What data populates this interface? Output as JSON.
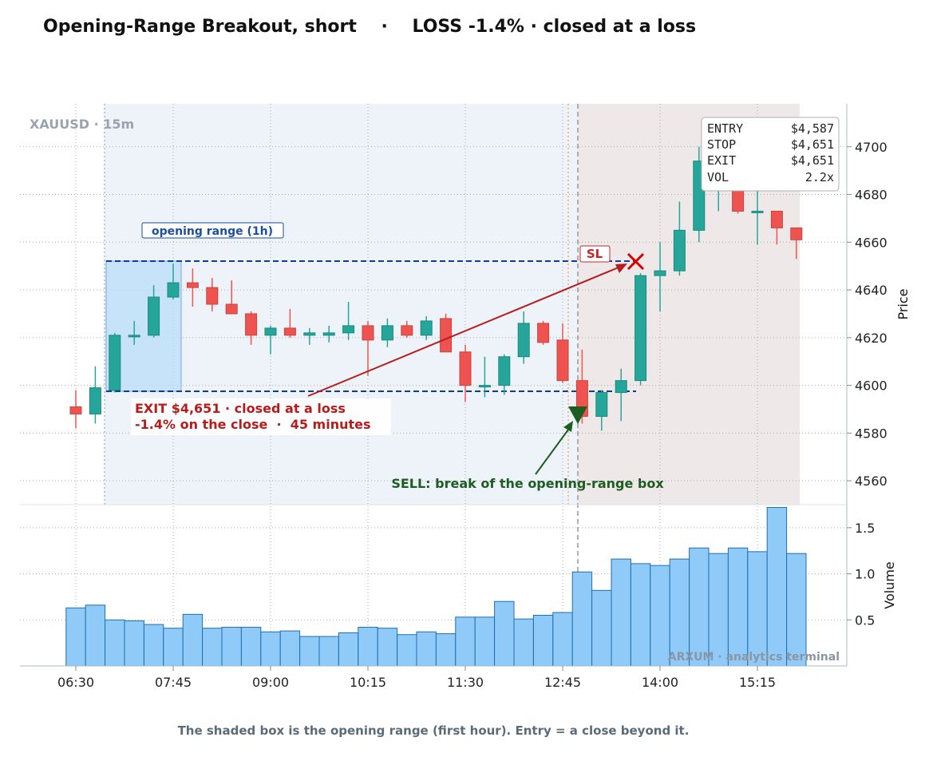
{
  "title": "Opening-Range Breakout, short    ·    LOSS -1.4% · closed at a loss",
  "symbol_label": "XAUUSD · 15m",
  "opening_range_label": "opening range (1h)",
  "sl_label": "SL",
  "exit_note_line1": "EXIT $4,651 · closed at a loss",
  "exit_note_line2": "-1.4% on the close  ·  45 minutes",
  "sell_note": "SELL: break of the opening-range box",
  "stats": {
    "entry_label": "ENTRY",
    "entry_value": "$4,587",
    "stop_label": "STOP",
    "stop_value": "$4,651",
    "exit_label": "EXIT",
    "exit_value": "$4,651",
    "vol_label": "VOL",
    "vol_value": "2.2x"
  },
  "watermark": "ARXUM · analytics terminal",
  "footer": "The shaded box is the opening range (first hour). Entry = a close beyond it.",
  "colors": {
    "up": "#26a69a",
    "down": "#ef5350",
    "volume": "#90caf9",
    "range_box": "#bbdefb",
    "range_line": "#0d3c9c",
    "exit": "#b71c1c",
    "sell": "#1b5e20"
  },
  "chart_data": {
    "type": "candlestick",
    "xlabel": "",
    "ylabel": "Price",
    "volume_label": "Volume",
    "x_ticks": [
      "06:30",
      "07:45",
      "09:00",
      "10:15",
      "11:30",
      "12:45",
      "14:00",
      "15:15"
    ],
    "y_ticks": [
      4560,
      4580,
      4600,
      4620,
      4640,
      4660,
      4680,
      4700
    ],
    "ylim": [
      4550,
      4718
    ],
    "volume_ticks": [
      0.5,
      1.0,
      1.5
    ],
    "volume_ylim": [
      0,
      1.75
    ],
    "bar_minutes": 15,
    "times": [
      "06:30",
      "06:45",
      "07:00",
      "07:15",
      "07:30",
      "07:45",
      "08:00",
      "08:15",
      "08:30",
      "08:45",
      "09:00",
      "09:15",
      "09:30",
      "09:45",
      "10:00",
      "10:15",
      "10:30",
      "10:45",
      "11:00",
      "11:15",
      "11:30",
      "11:45",
      "12:00",
      "12:15",
      "12:30",
      "12:45",
      "13:00",
      "13:15",
      "13:30",
      "13:45",
      "14:00",
      "14:15",
      "14:30",
      "14:45",
      "15:00",
      "15:15",
      "15:30",
      "15:45"
    ],
    "candles": [
      {
        "o": 4591,
        "h": 4598,
        "l": 4582,
        "c": 4588
      },
      {
        "o": 4588,
        "h": 4608,
        "l": 4584,
        "c": 4599
      },
      {
        "o": 4598,
        "h": 4622,
        "l": 4597,
        "c": 4621
      },
      {
        "o": 4621,
        "h": 4627,
        "l": 4617,
        "c": 4621
      },
      {
        "o": 4621,
        "h": 4642,
        "l": 4620,
        "c": 4637
      },
      {
        "o": 4637,
        "h": 4651,
        "l": 4636,
        "c": 4643
      },
      {
        "o": 4643,
        "h": 4649,
        "l": 4633,
        "c": 4641
      },
      {
        "o": 4641,
        "h": 4645,
        "l": 4631,
        "c": 4634
      },
      {
        "o": 4634,
        "h": 4644,
        "l": 4630,
        "c": 4630
      },
      {
        "o": 4630,
        "h": 4631,
        "l": 4617,
        "c": 4621
      },
      {
        "o": 4621,
        "h": 4625,
        "l": 4613,
        "c": 4624
      },
      {
        "o": 4624,
        "h": 4632,
        "l": 4620,
        "c": 4621
      },
      {
        "o": 4621,
        "h": 4624,
        "l": 4617,
        "c": 4622
      },
      {
        "o": 4621,
        "h": 4625,
        "l": 4618,
        "c": 4622
      },
      {
        "o": 4622,
        "h": 4635,
        "l": 4619,
        "c": 4625
      },
      {
        "o": 4625,
        "h": 4627,
        "l": 4604,
        "c": 4619
      },
      {
        "o": 4619,
        "h": 4628,
        "l": 4616,
        "c": 4625
      },
      {
        "o": 4625,
        "h": 4627,
        "l": 4620,
        "c": 4621
      },
      {
        "o": 4621,
        "h": 4629,
        "l": 4619,
        "c": 4627
      },
      {
        "o": 4628,
        "h": 4630,
        "l": 4614,
        "c": 4614
      },
      {
        "o": 4614,
        "h": 4617,
        "l": 4593,
        "c": 4600
      },
      {
        "o": 4600,
        "h": 4612,
        "l": 4595,
        "c": 4600
      },
      {
        "o": 4600,
        "h": 4613,
        "l": 4596,
        "c": 4612
      },
      {
        "o": 4612,
        "h": 4631,
        "l": 4609,
        "c": 4626
      },
      {
        "o": 4626,
        "h": 4627,
        "l": 4617,
        "c": 4618
      },
      {
        "o": 4619,
        "h": 4626,
        "l": 4601,
        "c": 4602
      },
      {
        "o": 4602,
        "h": 4615,
        "l": 4584,
        "c": 4587
      },
      {
        "o": 4587,
        "h": 4598,
        "l": 4581,
        "c": 4597
      },
      {
        "o": 4597,
        "h": 4607,
        "l": 4585,
        "c": 4602
      },
      {
        "o": 4602,
        "h": 4647,
        "l": 4600,
        "c": 4646
      },
      {
        "o": 4646,
        "h": 4660,
        "l": 4631,
        "c": 4648
      },
      {
        "o": 4648,
        "h": 4677,
        "l": 4646,
        "c": 4665
      },
      {
        "o": 4665,
        "h": 4700,
        "l": 4660,
        "c": 4694
      },
      {
        "o": 4694,
        "h": 4700,
        "l": 4673,
        "c": 4695
      },
      {
        "o": 4686,
        "h": 4698,
        "l": 4672,
        "c": 4673
      },
      {
        "o": 4673,
        "h": 4690,
        "l": 4659,
        "c": 4673
      },
      {
        "o": 4673,
        "h": 4673,
        "l": 4659,
        "c": 4666
      },
      {
        "o": 4666,
        "h": 4666,
        "l": 4653,
        "c": 4661
      }
    ],
    "volume": [
      0.63,
      0.66,
      0.5,
      0.49,
      0.45,
      0.41,
      0.56,
      0.41,
      0.42,
      0.42,
      0.37,
      0.38,
      0.32,
      0.32,
      0.36,
      0.42,
      0.41,
      0.34,
      0.37,
      0.35,
      0.53,
      0.53,
      0.7,
      0.51,
      0.55,
      0.58,
      1.02,
      0.82,
      1.16,
      1.11,
      1.09,
      1.16,
      1.28,
      1.22,
      1.28,
      1.24,
      1.72,
      1.22
    ],
    "opening_range": {
      "start": "06:45",
      "end": "07:45",
      "high": 4651,
      "low": 4597
    },
    "entry": {
      "time": "13:00",
      "price": 4587,
      "side": "short"
    },
    "stop": 4651,
    "exit": {
      "time": "13:45",
      "price": 4651
    },
    "trade_window": {
      "start": "13:00",
      "end": "15:45"
    }
  }
}
